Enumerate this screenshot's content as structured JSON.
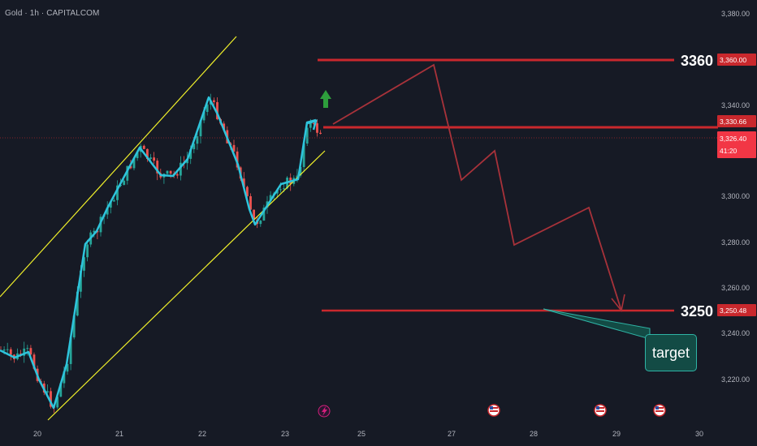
{
  "symbol": {
    "title": "Gold · 1h · CAPITALCOM",
    "name": "Gold",
    "interval": "1h",
    "source": "CAPITALCOM"
  },
  "price_axis": {
    "ticks": [
      "3,380.00",
      "3,340.00",
      "3,300.00",
      "3,280.00",
      "3,260.00",
      "3,240.00",
      "3,220.00"
    ],
    "tick_values": [
      3380,
      3340,
      3300,
      3280,
      3260,
      3240,
      3220
    ]
  },
  "time_axis": {
    "labels": [
      "20",
      "21",
      "22",
      "23",
      "25",
      "27",
      "28",
      "29",
      "30"
    ]
  },
  "levels": {
    "resistance": {
      "label": "3360",
      "tag": "3,360.00",
      "value": 3360
    },
    "entry": {
      "tag": "3,330.66",
      "value": 3330.66
    },
    "last_price": {
      "tag": "3,326.40",
      "value": 3326.4,
      "countdown": "41:20"
    },
    "support": {
      "label": "3250",
      "tag": "3,250.48",
      "value": 3250.48
    }
  },
  "annotation": {
    "target_label": "target"
  },
  "colors": {
    "background": "#161a25",
    "up_candle": "#26a69a",
    "down_candle": "#ef5350",
    "level_line": "#c9282d",
    "channel": "#f0f02a",
    "wave": "#2ec4dc",
    "projection": "#a8323a",
    "arrow_up": "#2e9e3c",
    "target_box": "#134b45"
  },
  "icons": {
    "up_arrow": "green-up-arrow-icon",
    "event_bolt": "lightning-event-icon",
    "us_flag": "us-flag-event-icon"
  },
  "chart_data": {
    "type": "candlestick",
    "y_range": [
      3210,
      3390
    ],
    "wave_pivots": [
      {
        "day": "20",
        "price": 3232
      },
      {
        "day": "20",
        "price": 3216
      },
      {
        "day": "21",
        "price": 3313
      },
      {
        "day": "21",
        "price": 3311
      },
      {
        "day": "22",
        "price": 3343
      },
      {
        "day": "22",
        "price": 3289
      },
      {
        "day": "23",
        "price": 3332
      }
    ],
    "projection_path": [
      3330.66,
      3358,
      3306,
      3316,
      3279,
      3296,
      3251
    ]
  }
}
